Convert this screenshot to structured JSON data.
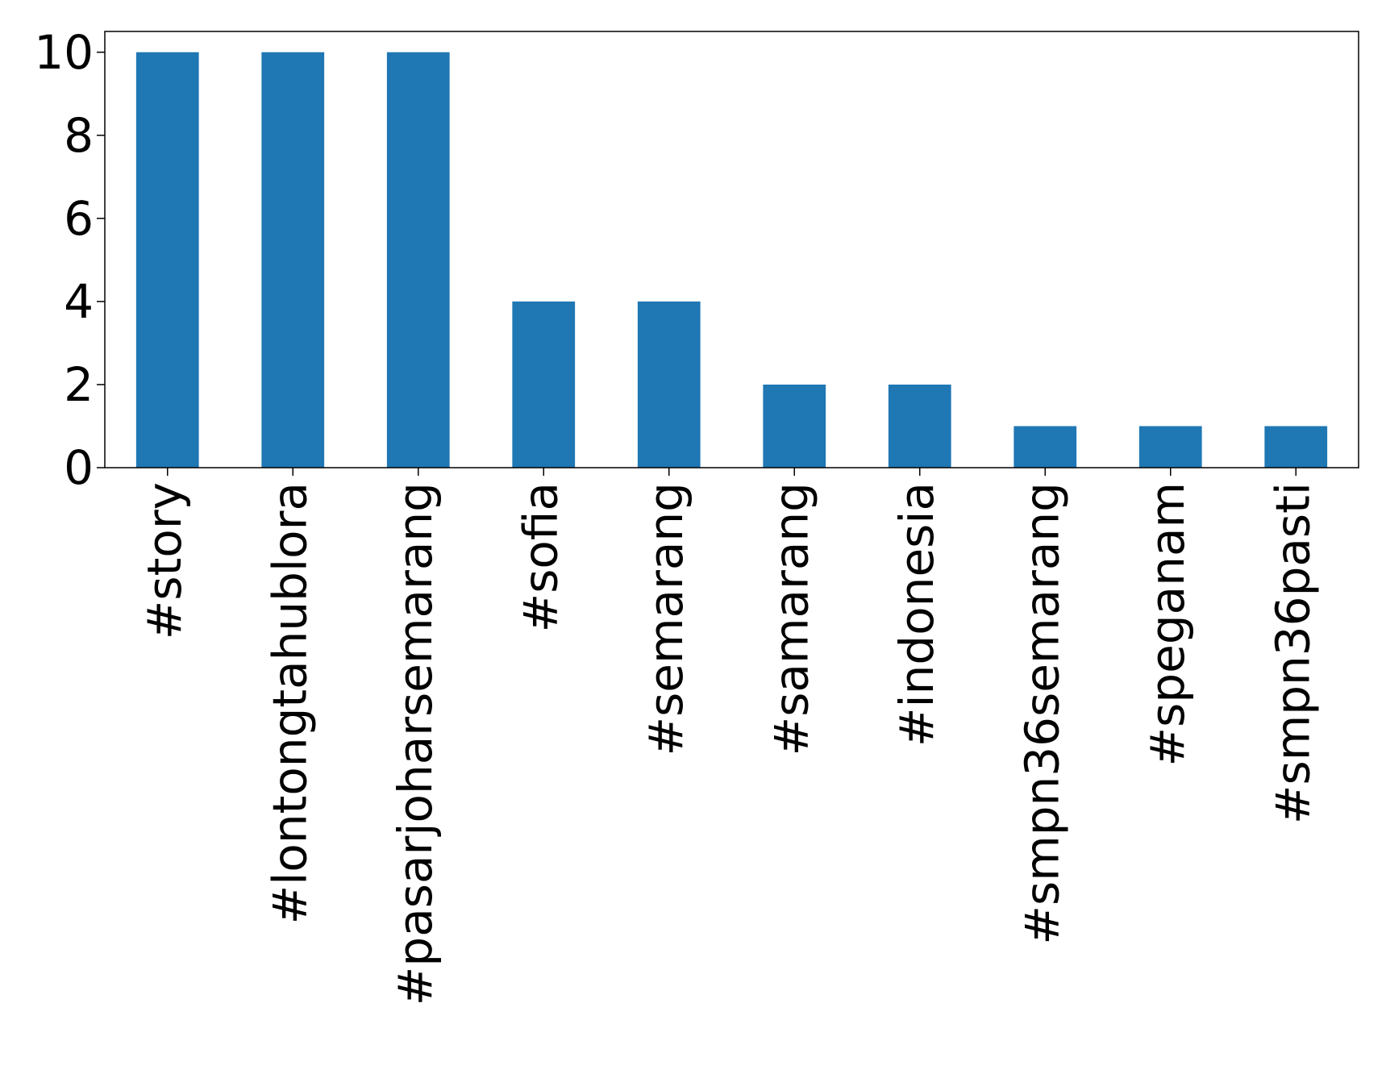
{
  "chart_data": {
    "type": "bar",
    "title": "",
    "xlabel": "",
    "ylabel": "",
    "categories": [
      "#story",
      "#lontongtahublora",
      "#pasarjoharsemarang",
      "#sofia",
      "#semarang",
      "#samarang",
      "#indonesia",
      "#smpn36semarang",
      "#speganam",
      "#smpn36pasti"
    ],
    "values": [
      10,
      10,
      10,
      4,
      4,
      2,
      2,
      1,
      1,
      1
    ],
    "ylim": [
      0,
      10.5
    ],
    "yticks": [
      0,
      2,
      4,
      6,
      8,
      10
    ],
    "grid": false,
    "legend": "none",
    "bar_color": "#1f77b4"
  }
}
